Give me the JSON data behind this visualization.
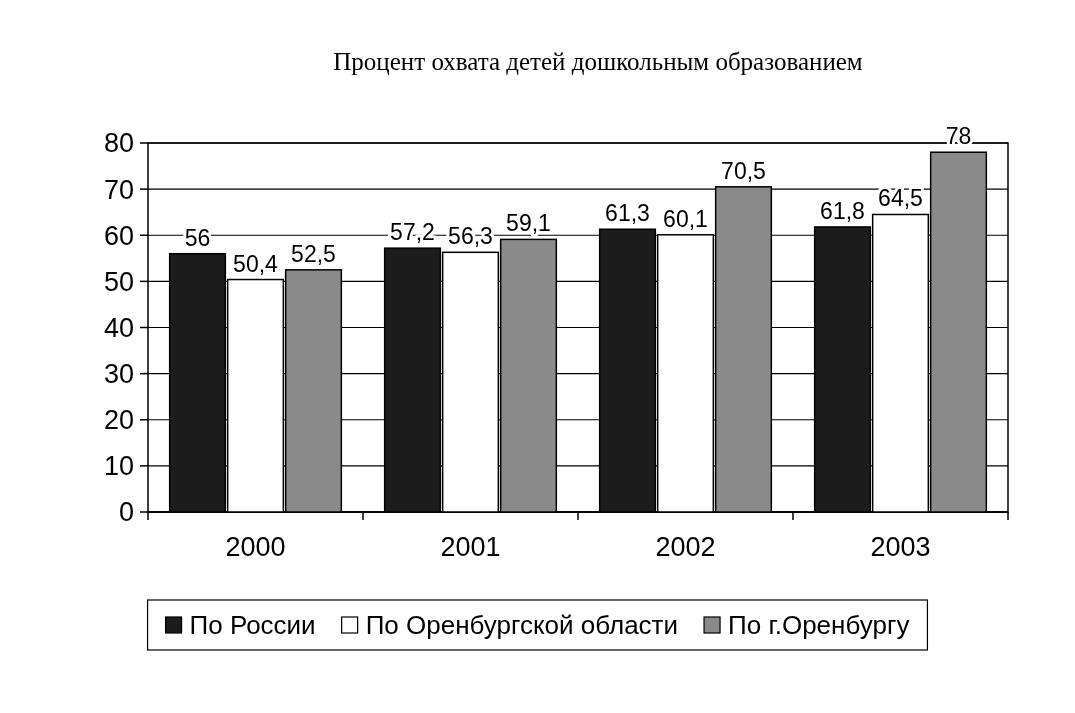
{
  "chart_data": {
    "type": "bar",
    "title": "Процент охвата детей дошкольным образованием",
    "categories": [
      "2000",
      "2001",
      "2002",
      "2003"
    ],
    "series": [
      {
        "name": "По России",
        "color": "#1c1c1c",
        "values": [
          56,
          57.2,
          61.3,
          61.8
        ],
        "value_labels": [
          "56",
          "57,2",
          "61,3",
          "61,8"
        ]
      },
      {
        "name": "По Оренбургской области",
        "color": "#ffffff",
        "values": [
          50.4,
          56.3,
          60.1,
          64.5
        ],
        "value_labels": [
          "50,4",
          "56,3",
          "60,1",
          "64,5"
        ]
      },
      {
        "name": "По г.Оренбургу",
        "color": "#8a8a8a",
        "values": [
          52.5,
          59.1,
          70.5,
          78
        ],
        "value_labels": [
          "52,5",
          "59,1",
          "70,5",
          "78"
        ]
      }
    ],
    "ylim": [
      0,
      80
    ],
    "yticks": [
      0,
      10,
      20,
      30,
      40,
      50,
      60,
      70,
      80
    ],
    "grid": "y",
    "legend": "bottom"
  }
}
